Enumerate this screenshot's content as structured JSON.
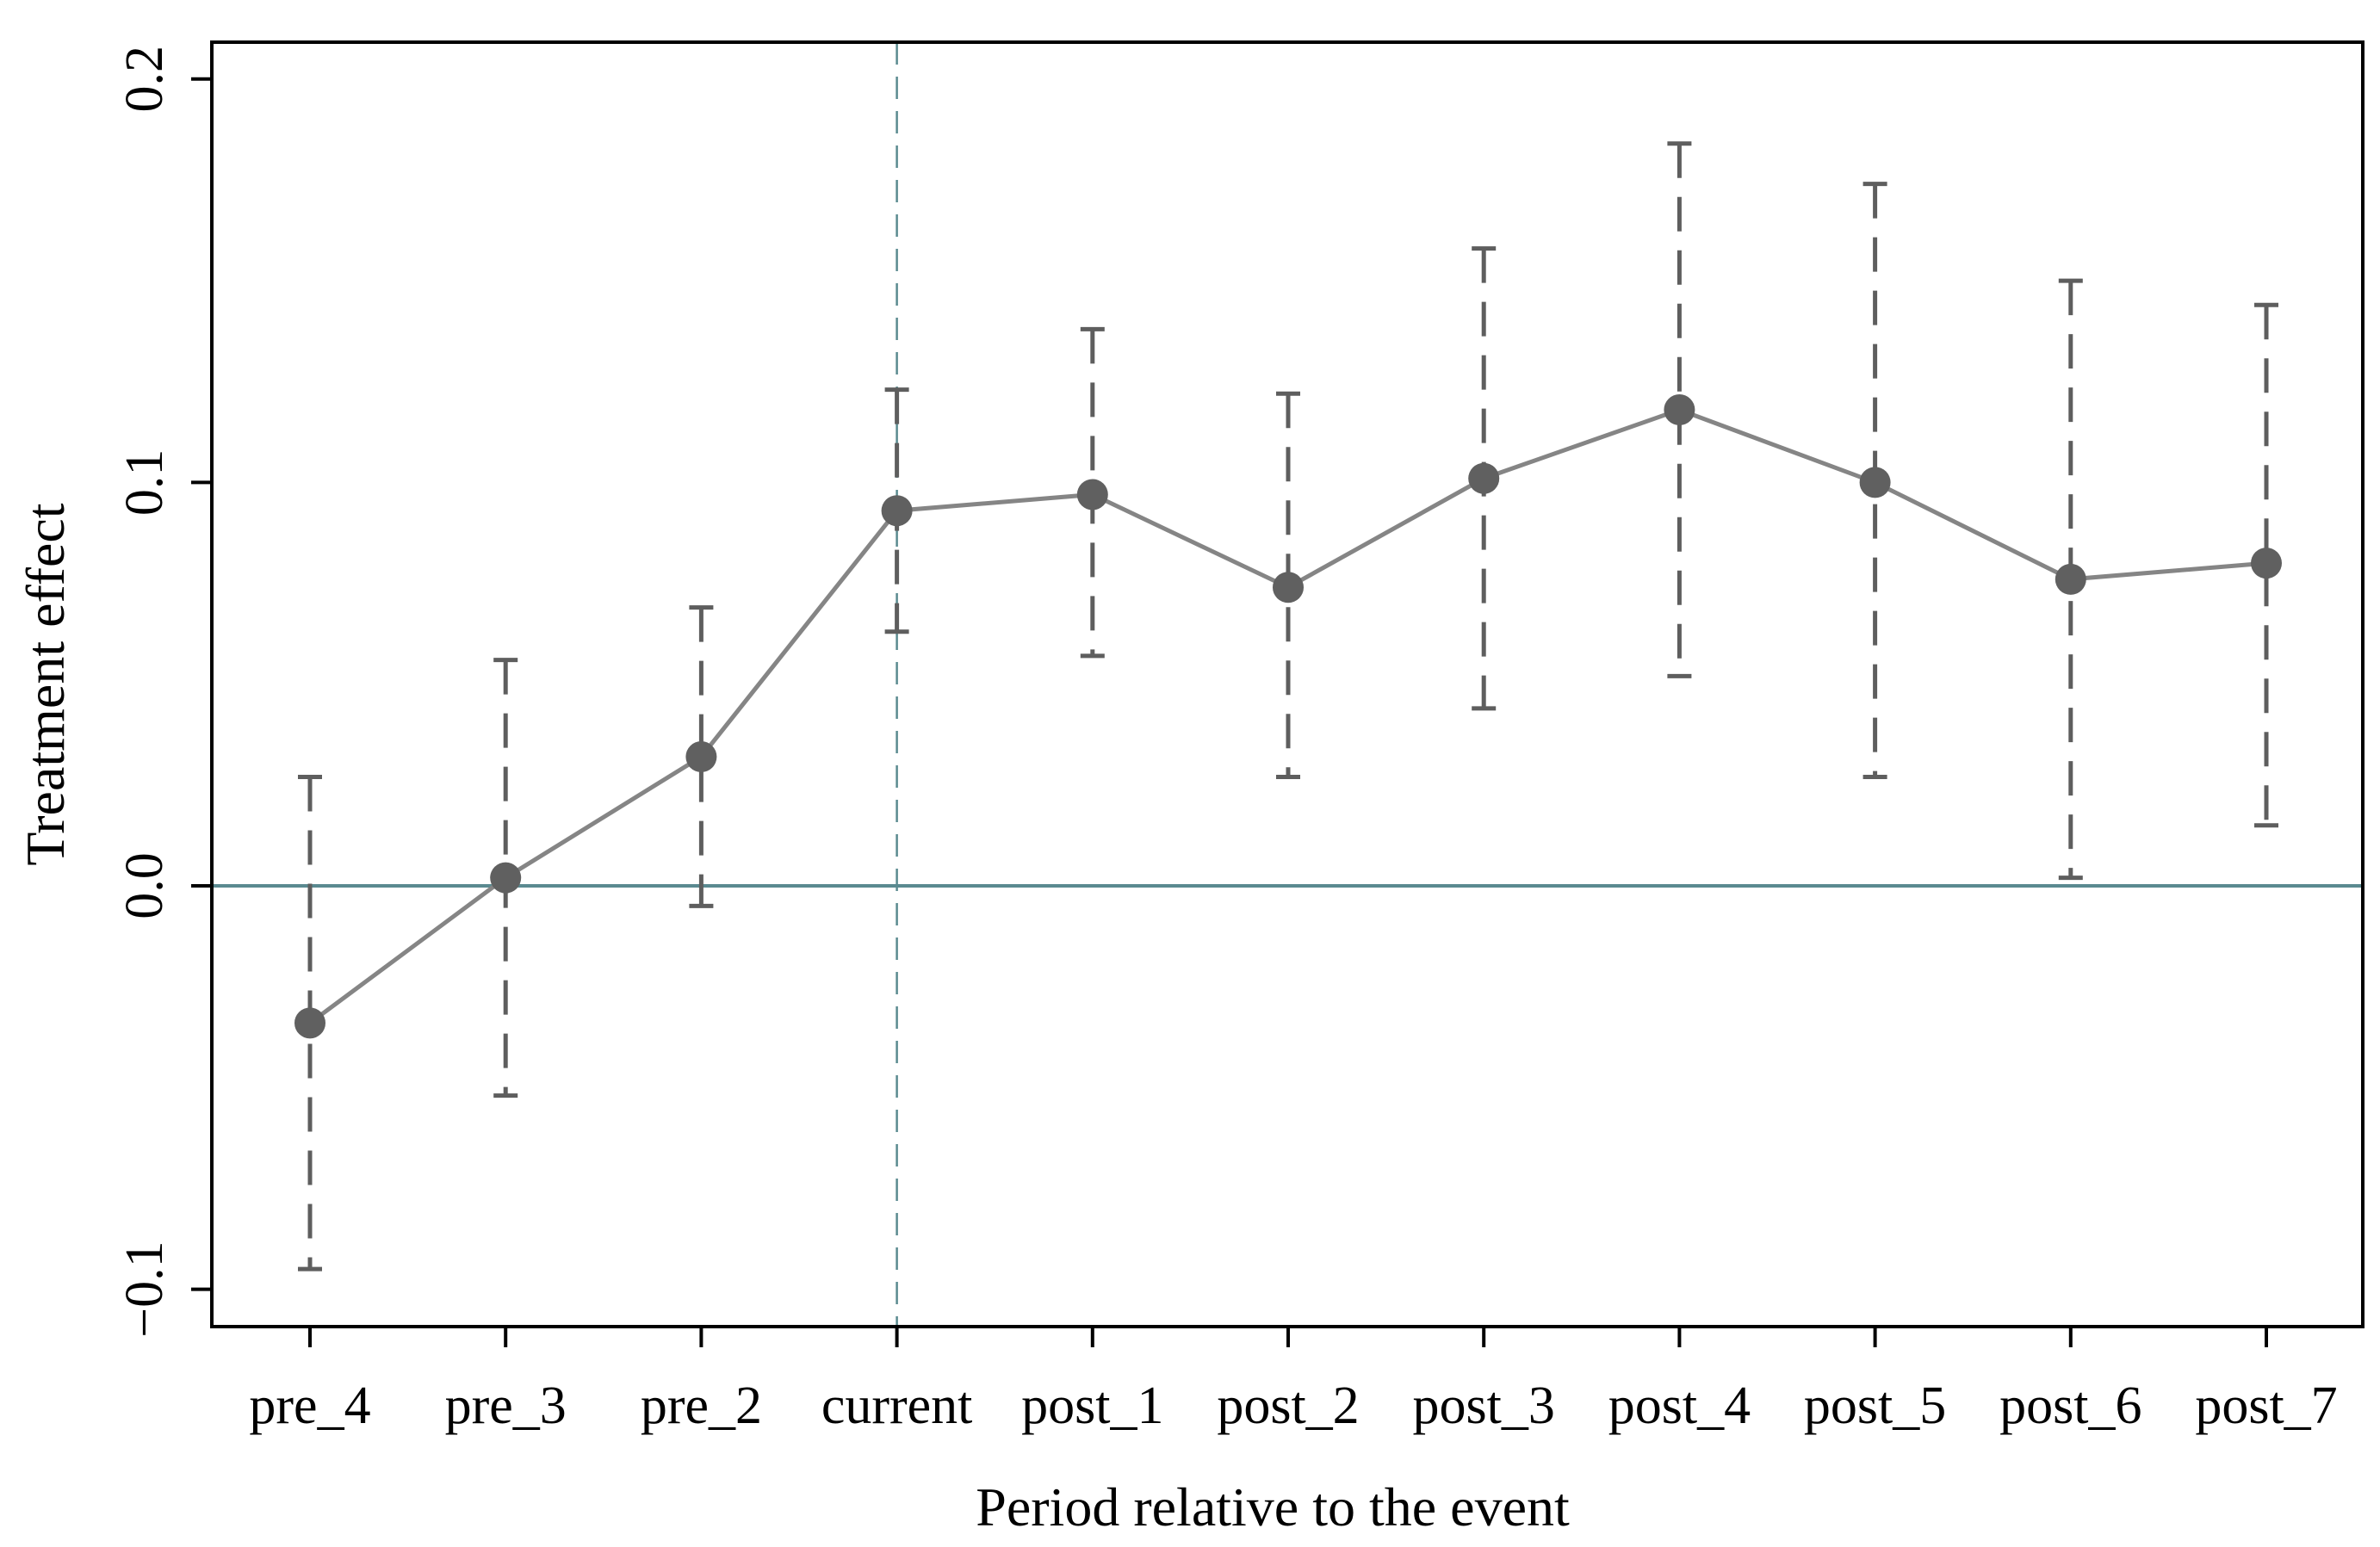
{
  "chart_data": {
    "type": "line",
    "title": "",
    "xlabel": "Period relative to the event",
    "ylabel": "Treatment effect",
    "categories": [
      "pre_4",
      "pre_3",
      "pre_2",
      "current",
      "post_1",
      "post_2",
      "post_3",
      "post_4",
      "post_5",
      "post_6",
      "post_7"
    ],
    "series": [
      {
        "values": [
          -0.034,
          0.002,
          0.032,
          0.093,
          0.097,
          0.074,
          0.101,
          0.118,
          0.1,
          0.076,
          0.08
        ],
        "ci_lower": [
          -0.095,
          -0.052,
          -0.005,
          0.063,
          0.057,
          0.027,
          0.044,
          0.052,
          0.027,
          0.002,
          0.015
        ],
        "ci_upper": [
          0.027,
          0.056,
          0.069,
          0.123,
          0.138,
          0.122,
          0.158,
          0.184,
          0.174,
          0.15,
          0.144
        ]
      }
    ],
    "ylim": [
      -0.11,
      0.21
    ],
    "yticks": [
      -0.1,
      0.0,
      0.1,
      0.2
    ],
    "ytick_labels": [
      "−0.1",
      "0.0",
      "0.1",
      "0.2"
    ],
    "reference_lines": {
      "horizontal_y": 0.0,
      "vertical_at_category": "current"
    },
    "grid": false,
    "legend": "none",
    "colors": {
      "marker": "#606060",
      "line": "#858585",
      "error_bar": "#5e5e5e",
      "reference": "#5a8a90"
    }
  }
}
